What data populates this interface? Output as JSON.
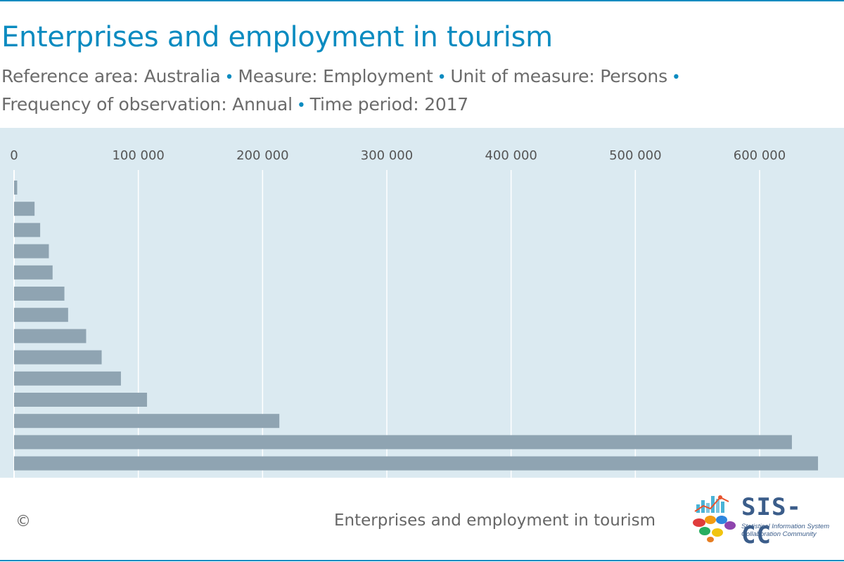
{
  "header": {
    "title": "Enterprises and employment in tourism",
    "subtitle_parts": [
      "Reference area: Australia",
      "Measure: Employment",
      "Unit of measure: Persons",
      "Frequency of observation: Annual",
      "Time period: 2017"
    ],
    "separator": "•"
  },
  "chart_data": {
    "type": "bar",
    "orientation": "horizontal",
    "title": "",
    "xlabel": "",
    "ylabel": "",
    "xlim": [
      0,
      650000
    ],
    "ticks": [
      0,
      100000,
      200000,
      300000,
      400000,
      500000,
      600000
    ],
    "tick_labels": [
      "0",
      "100 000",
      "200 000",
      "300 000",
      "400 000",
      "500 000",
      "600 000"
    ],
    "values": [
      2500,
      16500,
      21000,
      28000,
      31000,
      40500,
      43500,
      58000,
      70500,
      86000,
      107000,
      213500,
      626000,
      647000
    ],
    "grid": true,
    "axis_position": "top",
    "colors": {
      "bar": "#8fa4b2",
      "plot_background": "#dbeaf1",
      "grid": "#ffffff"
    }
  },
  "footer": {
    "copyright": "©",
    "title": "Enterprises and employment in tourism",
    "logo_text": "SIS-CC",
    "logo_subtitle_1": "Statistical Information System",
    "logo_subtitle_2": "Collaboration Community"
  },
  "colors": {
    "accent": "#0a8bc0"
  }
}
